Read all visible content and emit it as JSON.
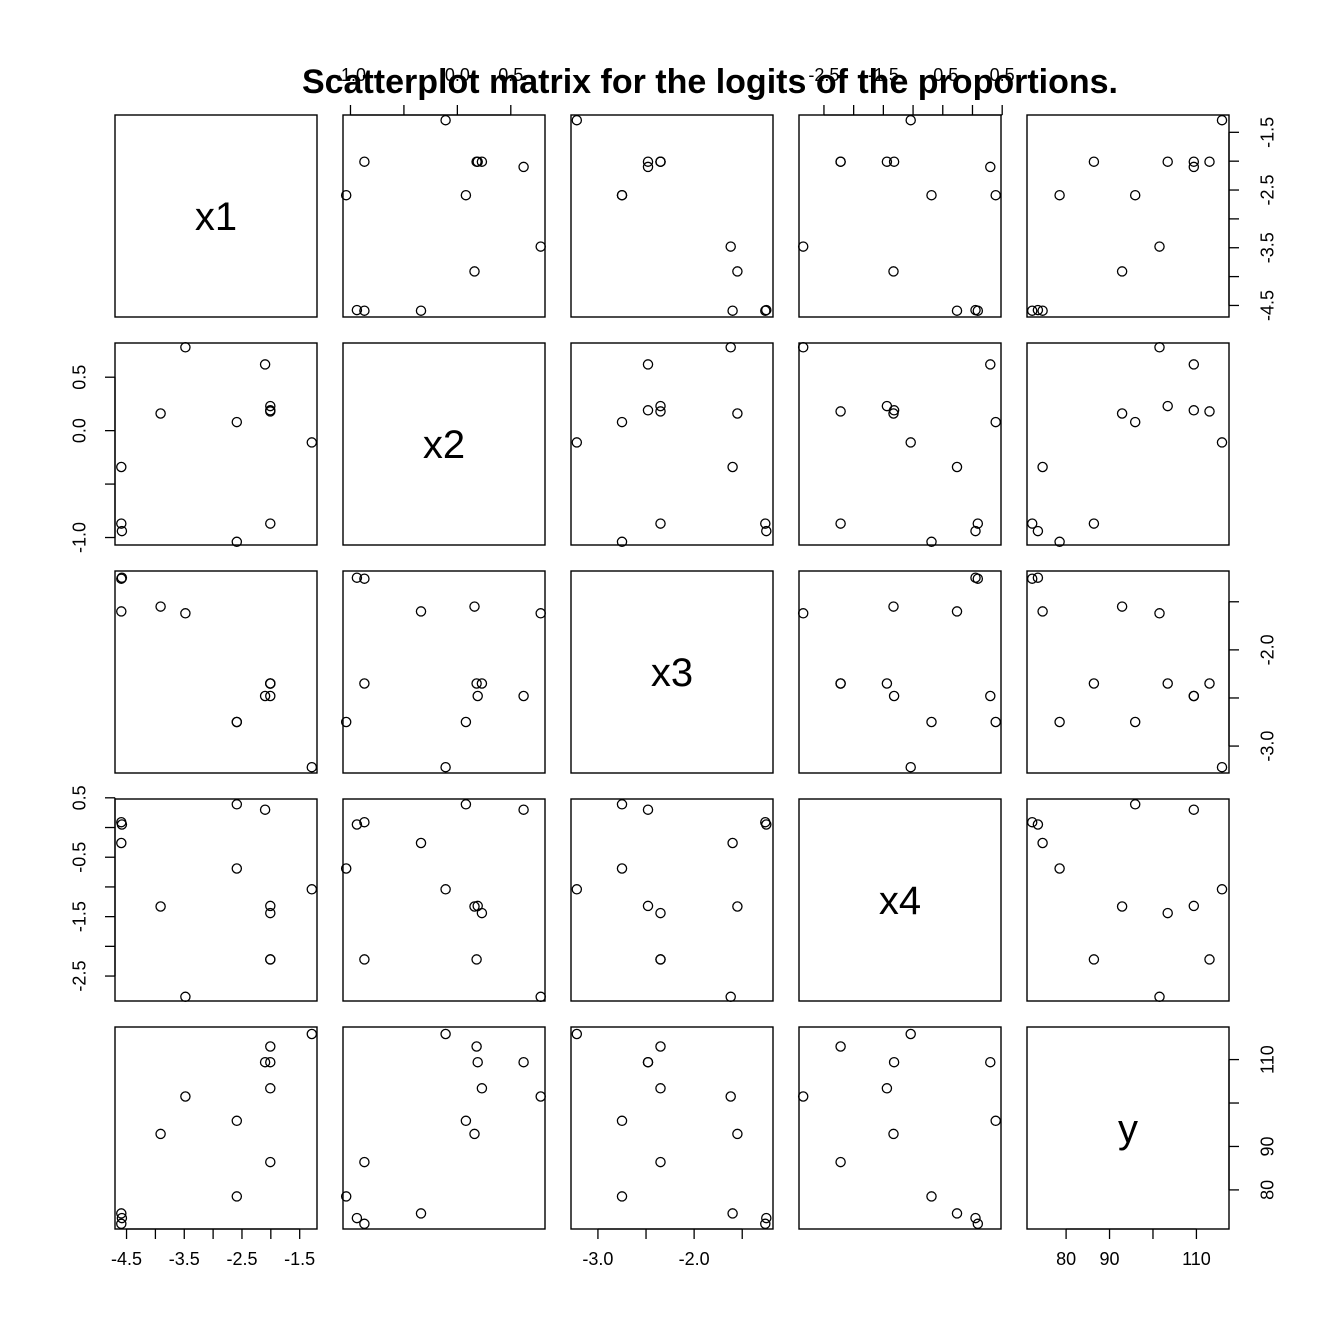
{
  "chart_data": {
    "type": "scatter",
    "subtype": "scatterplot-matrix",
    "title": "Scatterplot matrix for the logits of the proportions.",
    "variables": [
      "x1",
      "x2",
      "x3",
      "x4",
      "y"
    ],
    "observations": {
      "x1": [
        -4.59,
        -4.59,
        -4.58,
        -3.91,
        -3.48,
        -2.59,
        -2.59,
        -2.1,
        -2.01,
        -2.01,
        -2.01,
        -2.01,
        -1.29
      ],
      "x2": [
        -0.34,
        -0.87,
        -0.94,
        0.16,
        0.78,
        0.08,
        -1.04,
        0.62,
        0.23,
        0.19,
        0.18,
        -0.87,
        -0.11
      ],
      "x3": [
        -1.6,
        -1.26,
        -1.25,
        -1.55,
        -1.62,
        -2.75,
        -2.75,
        -2.48,
        -2.35,
        -2.48,
        -2.35,
        -2.35,
        -3.22
      ],
      "x4": [
        -0.26,
        0.09,
        0.05,
        -1.33,
        -2.85,
        0.39,
        -0.69,
        0.3,
        -1.44,
        -1.32,
        -2.22,
        -2.22,
        -1.04
      ],
      "y": [
        74.6,
        72.2,
        73.5,
        92.9,
        101.5,
        95.9,
        78.5,
        109.4,
        103.4,
        109.4,
        113.0,
        86.4,
        115.9
      ]
    },
    "axes": {
      "x1": {
        "lim": [
          -4.7,
          -1.2
        ],
        "ticks": [
          -4.5,
          -4.0,
          -3.5,
          -3.0,
          -2.5,
          -2.0,
          -1.5
        ],
        "labeled": [
          "-4.5",
          "",
          "-3.5",
          "",
          "-2.5",
          "",
          "-1.5"
        ]
      },
      "x2": {
        "lim": [
          -1.07,
          0.82
        ],
        "ticks": [
          -1.0,
          -0.5,
          0.0,
          0.5
        ],
        "labeled": [
          "-1.0",
          "",
          "0.0",
          "0.5"
        ]
      },
      "x3": {
        "lim": [
          -3.28,
          -1.18
        ],
        "ticks": [
          -3.0,
          -2.5,
          -2.0,
          -1.5
        ],
        "labeled": [
          "-3.0",
          "",
          "-2.0",
          ""
        ]
      },
      "x4": {
        "lim": [
          -2.92,
          0.48
        ],
        "ticks": [
          -2.5,
          -2.0,
          -1.5,
          -1.0,
          -0.5,
          0.0,
          0.5
        ],
        "labeled": [
          "-2.5",
          "",
          "-1.5",
          "",
          "-0.5",
          "",
          "0.5"
        ]
      },
      "y": {
        "lim": [
          71.0,
          117.5
        ],
        "ticks": [
          80,
          90,
          100,
          110
        ],
        "labeled": [
          "80",
          "90",
          "",
          "110"
        ]
      }
    },
    "grid": false,
    "legend": "none"
  }
}
